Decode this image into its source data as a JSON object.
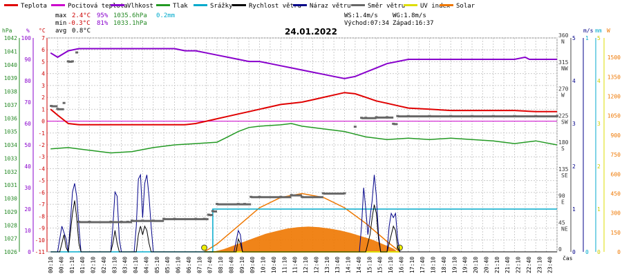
{
  "chart_data": {
    "type": "line",
    "title": "24.01.2022",
    "legend": [
      {
        "label": "Teplota",
        "color": "#e00000"
      },
      {
        "label": "Pocitová teplota",
        "color": "#cc00cc"
      },
      {
        "label": "Vlhkost",
        "color": "#8800cc"
      },
      {
        "label": "Tlak",
        "color": "#229922"
      },
      {
        "label": "Srážky",
        "color": "#00aacc"
      },
      {
        "label": "Rychlost větru",
        "color": "#000000"
      },
      {
        "label": "Náraz větru",
        "color": "#000088"
      },
      {
        "label": "Směr větru",
        "color": "#666666"
      },
      {
        "label": "UV index",
        "color": "#dddd00"
      },
      {
        "label": "Solar",
        "color": "#ee7700"
      }
    ],
    "stats": {
      "max_label": "max",
      "min_label": "min",
      "avg_label": "avg",
      "max_temp": "2.4°C",
      "max_hum": "95%",
      "max_press": "1035.6hPa",
      "rain": "0.2mm",
      "min_temp": "-0.3°C",
      "min_hum": "81%",
      "min_press": "1033.1hPa",
      "avg_temp": "0.8°C"
    },
    "wind_info": {
      "ws": "WS:1.4m/s",
      "wg": "WG:1.8m/s",
      "sunrise": "Východ:07:34",
      "sunset": "Západ:16:37"
    },
    "axes": {
      "hpa": {
        "unit": "hPa",
        "ticks": [
          1026,
          1027,
          1028,
          1029,
          1030,
          1031,
          1032,
          1033,
          1034,
          1035,
          1036,
          1037,
          1038,
          1039,
          1040,
          1041,
          1042
        ],
        "range": [
          1026,
          1042
        ]
      },
      "percent": {
        "unit": "%",
        "ticks": [
          0,
          10,
          20,
          30,
          40,
          50,
          60,
          70,
          80,
          90,
          100
        ],
        "range": [
          0,
          100
        ]
      },
      "temp": {
        "unit": "°C",
        "ticks": [
          -11,
          -10,
          -9,
          -8,
          -7,
          -6,
          -5,
          -4,
          -3,
          -2,
          -1,
          0,
          1,
          2,
          3,
          4,
          5,
          6,
          7
        ],
        "range": [
          -11,
          7
        ]
      },
      "direction": {
        "ticks": [
          {
            "v": 360,
            "d": "N"
          },
          {
            "v": 315,
            "d": "NW"
          },
          {
            "v": 270,
            "d": "W"
          },
          {
            "v": 225,
            "d": "SW"
          },
          {
            "v": 180,
            "d": "S"
          },
          {
            "v": 135,
            "d": "SE"
          },
          {
            "v": 90,
            "d": "E"
          },
          {
            "v": 45,
            "d": "NE"
          },
          {
            "v": 0,
            "d": ""
          }
        ],
        "range": [
          0,
          360
        ]
      },
      "wind": {
        "unit": "m/s",
        "ticks": [
          0,
          1,
          2,
          3,
          4,
          5
        ],
        "range": [
          0,
          5
        ]
      },
      "rain": {
        "unit": "mm",
        "ticks": [
          0,
          1
        ],
        "range": [
          0,
          1
        ]
      },
      "uv": {
        "unit": "UV",
        "ticks": [
          0,
          1,
          2,
          3,
          4,
          5
        ],
        "range": [
          0,
          5
        ]
      },
      "solar": {
        "unit": "W",
        "ticks": [
          0,
          150,
          300,
          450,
          600,
          750,
          900,
          1050,
          1200,
          1350,
          1500
        ],
        "range": [
          0,
          1650
        ]
      },
      "time_label": "čas",
      "time_ticks": [
        "00:10",
        "00:40",
        "01:10",
        "01:40",
        "02:10",
        "02:40",
        "03:10",
        "03:40",
        "04:10",
        "04:40",
        "05:10",
        "05:40",
        "06:10",
        "06:40",
        "07:10",
        "07:40",
        "08:10",
        "08:40",
        "09:10",
        "09:40",
        "10:10",
        "10:40",
        "11:10",
        "11:40",
        "12:10",
        "12:40",
        "13:10",
        "13:40",
        "14:10",
        "14:40",
        "15:10",
        "15:40",
        "16:10",
        "16:40",
        "17:10",
        "17:40",
        "18:10",
        "18:40",
        "19:10",
        "19:40",
        "20:10",
        "20:40",
        "21:10",
        "21:40",
        "22:10",
        "22:40",
        "23:10",
        "23:40"
      ]
    },
    "series": {
      "temperature_c": [
        [
          0.17,
          1.0
        ],
        [
          0.5,
          0.5
        ],
        [
          1.0,
          -0.2
        ],
        [
          1.5,
          -0.3
        ],
        [
          2,
          -0.3
        ],
        [
          3,
          -0.3
        ],
        [
          4,
          -0.3
        ],
        [
          5,
          -0.3
        ],
        [
          6,
          -0.3
        ],
        [
          6.5,
          -0.3
        ],
        [
          7,
          -0.2
        ],
        [
          7.5,
          0.0
        ],
        [
          8,
          0.2
        ],
        [
          8.5,
          0.4
        ],
        [
          9,
          0.6
        ],
        [
          9.5,
          0.8
        ],
        [
          10,
          1.0
        ],
        [
          10.5,
          1.2
        ],
        [
          11,
          1.4
        ],
        [
          11.5,
          1.5
        ],
        [
          12,
          1.6
        ],
        [
          12.5,
          1.8
        ],
        [
          13,
          2.0
        ],
        [
          13.5,
          2.2
        ],
        [
          14,
          2.4
        ],
        [
          14.5,
          2.3
        ],
        [
          15,
          2.0
        ],
        [
          15.5,
          1.7
        ],
        [
          16,
          1.5
        ],
        [
          16.5,
          1.3
        ],
        [
          17,
          1.1
        ],
        [
          18,
          1.0
        ],
        [
          19,
          0.9
        ],
        [
          20,
          0.9
        ],
        [
          21,
          0.9
        ],
        [
          22,
          0.9
        ],
        [
          23,
          0.8
        ],
        [
          24,
          0.8
        ]
      ],
      "feels_like_c": [
        [
          0.0,
          0.0
        ],
        [
          24,
          0.0
        ]
      ],
      "humidity_pct": [
        [
          0.17,
          93
        ],
        [
          0.5,
          91
        ],
        [
          1.0,
          94
        ],
        [
          1.5,
          95
        ],
        [
          2,
          95
        ],
        [
          3,
          95
        ],
        [
          4,
          95
        ],
        [
          5,
          95
        ],
        [
          6,
          95
        ],
        [
          6.5,
          94
        ],
        [
          7,
          94
        ],
        [
          7.5,
          93
        ],
        [
          8,
          92
        ],
        [
          8.5,
          91
        ],
        [
          9,
          90
        ],
        [
          9.5,
          89
        ],
        [
          10,
          89
        ],
        [
          10.5,
          88
        ],
        [
          11,
          87
        ],
        [
          11.5,
          86
        ],
        [
          12,
          85
        ],
        [
          12.5,
          84
        ],
        [
          13,
          83
        ],
        [
          13.5,
          82
        ],
        [
          14,
          81
        ],
        [
          14.5,
          82
        ],
        [
          15,
          84
        ],
        [
          15.5,
          86
        ],
        [
          16,
          88
        ],
        [
          16.5,
          89
        ],
        [
          17,
          90
        ],
        [
          18,
          90
        ],
        [
          19,
          90
        ],
        [
          20,
          90
        ],
        [
          21,
          90
        ],
        [
          22,
          90
        ],
        [
          22.5,
          91
        ],
        [
          22.7,
          90
        ],
        [
          24,
          90
        ]
      ],
      "pressure_hpa": [
        [
          0.17,
          1033.7
        ],
        [
          1,
          1033.8
        ],
        [
          2,
          1033.6
        ],
        [
          3,
          1033.4
        ],
        [
          4,
          1033.5
        ],
        [
          5,
          1033.8
        ],
        [
          6,
          1034.0
        ],
        [
          7,
          1034.1
        ],
        [
          8,
          1034.2
        ],
        [
          8.5,
          1034.6
        ],
        [
          9,
          1035.0
        ],
        [
          9.5,
          1035.3
        ],
        [
          10,
          1035.4
        ],
        [
          11,
          1035.5
        ],
        [
          11.5,
          1035.6
        ],
        [
          12,
          1035.4
        ],
        [
          13,
          1035.2
        ],
        [
          14,
          1035.0
        ],
        [
          15,
          1034.6
        ],
        [
          16,
          1034.4
        ],
        [
          17,
          1034.5
        ],
        [
          18,
          1034.4
        ],
        [
          19,
          1034.5
        ],
        [
          20,
          1034.4
        ],
        [
          21,
          1034.3
        ],
        [
          22,
          1034.1
        ],
        [
          23,
          1034.3
        ],
        [
          24,
          1034.0
        ]
      ],
      "rain_mm": [
        [
          0.17,
          0
        ],
        [
          7.8,
          0
        ],
        [
          7.8,
          0.2
        ],
        [
          24,
          0.2
        ]
      ],
      "wind_speed_ms": [
        [
          0.17,
          0
        ],
        [
          0.6,
          0
        ],
        [
          0.8,
          0.4
        ],
        [
          0.9,
          0.1
        ],
        [
          1.0,
          0
        ],
        [
          1.2,
          0.9
        ],
        [
          1.3,
          1.2
        ],
        [
          1.4,
          0.8
        ],
        [
          1.5,
          0.2
        ],
        [
          1.6,
          0
        ],
        [
          3.0,
          0
        ],
        [
          3.1,
          0.2
        ],
        [
          3.2,
          0.5
        ],
        [
          3.3,
          0.2
        ],
        [
          3.4,
          0
        ],
        [
          4.2,
          0
        ],
        [
          4.3,
          0.4
        ],
        [
          4.4,
          0.6
        ],
        [
          4.5,
          0.4
        ],
        [
          4.6,
          0.6
        ],
        [
          4.7,
          0.5
        ],
        [
          4.8,
          0.2
        ],
        [
          4.9,
          0
        ],
        [
          6.0,
          0
        ],
        [
          8.9,
          0
        ],
        [
          9.0,
          0.3
        ],
        [
          9.1,
          0.2
        ],
        [
          9.2,
          0
        ],
        [
          15.0,
          0
        ],
        [
          15.2,
          0.4
        ],
        [
          15.3,
          0.8
        ],
        [
          15.4,
          1.1
        ],
        [
          15.5,
          0.9
        ],
        [
          15.6,
          0.3
        ],
        [
          15.7,
          0
        ],
        [
          16.0,
          0
        ],
        [
          16.1,
          0.2
        ],
        [
          16.3,
          0.6
        ],
        [
          16.4,
          0.5
        ],
        [
          16.5,
          0.1
        ],
        [
          16.6,
          0
        ],
        [
          24,
          0
        ]
      ],
      "wind_gust_ms": [
        [
          0.17,
          0
        ],
        [
          0.5,
          0
        ],
        [
          0.7,
          0.6
        ],
        [
          0.9,
          0.3
        ],
        [
          1.0,
          0
        ],
        [
          1.2,
          1.4
        ],
        [
          1.3,
          1.6
        ],
        [
          1.4,
          1.3
        ],
        [
          1.5,
          0.6
        ],
        [
          1.6,
          0
        ],
        [
          3.0,
          0
        ],
        [
          3.1,
          0.6
        ],
        [
          3.2,
          1.4
        ],
        [
          3.3,
          1.3
        ],
        [
          3.4,
          0.3
        ],
        [
          3.5,
          0
        ],
        [
          4.1,
          0
        ],
        [
          4.2,
          0.6
        ],
        [
          4.3,
          1.7
        ],
        [
          4.4,
          1.8
        ],
        [
          4.5,
          0.8
        ],
        [
          4.6,
          1.6
        ],
        [
          4.7,
          1.8
        ],
        [
          4.8,
          1.3
        ],
        [
          4.9,
          0.6
        ],
        [
          5.0,
          0
        ],
        [
          6.0,
          0
        ],
        [
          8.8,
          0
        ],
        [
          9.0,
          0.5
        ],
        [
          9.1,
          0.4
        ],
        [
          9.2,
          0
        ],
        [
          14.7,
          0
        ],
        [
          14.8,
          0.6
        ],
        [
          14.9,
          1.5
        ],
        [
          15.0,
          1.0
        ],
        [
          15.1,
          0.4
        ],
        [
          15.3,
          1.2
        ],
        [
          15.4,
          1.8
        ],
        [
          15.5,
          1.3
        ],
        [
          15.6,
          0.4
        ],
        [
          15.7,
          0
        ],
        [
          16.0,
          0
        ],
        [
          16.1,
          0.6
        ],
        [
          16.2,
          0.9
        ],
        [
          16.3,
          0.8
        ],
        [
          16.4,
          0.9
        ],
        [
          16.5,
          0.3
        ],
        [
          16.6,
          0
        ],
        [
          24,
          0
        ]
      ],
      "wind_dir_deg": [
        [
          0.2,
          245
        ],
        [
          0.5,
          240
        ],
        [
          0.8,
          250
        ],
        [
          1.0,
          320
        ],
        [
          1.2,
          320
        ],
        [
          1.4,
          335
        ],
        [
          1.5,
          50
        ],
        [
          2,
          50
        ],
        [
          3,
          50
        ],
        [
          3.5,
          50
        ],
        [
          3.8,
          50
        ],
        [
          4.0,
          52
        ],
        [
          4.5,
          52
        ],
        [
          5,
          52
        ],
        [
          5.5,
          55
        ],
        [
          6,
          55
        ],
        [
          7,
          55
        ],
        [
          7.4,
          55
        ],
        [
          7.6,
          62
        ],
        [
          7.8,
          68
        ],
        [
          8,
          80
        ],
        [
          9,
          80
        ],
        [
          9.3,
          80
        ],
        [
          9.6,
          92
        ],
        [
          10,
          92
        ],
        [
          11,
          92
        ],
        [
          11.5,
          95
        ],
        [
          12,
          92
        ],
        [
          13,
          98
        ],
        [
          14,
          98
        ],
        [
          14.5,
          210
        ],
        [
          14.8,
          225
        ],
        [
          15,
          225
        ],
        [
          15.5,
          226
        ],
        [
          16,
          226
        ],
        [
          16.3,
          215
        ],
        [
          16.5,
          228
        ],
        [
          17,
          228
        ],
        [
          18,
          228
        ],
        [
          19,
          228
        ],
        [
          20,
          228
        ],
        [
          21,
          228
        ],
        [
          22,
          228
        ],
        [
          23,
          228
        ],
        [
          24,
          228
        ]
      ],
      "solar_wm2": [
        [
          7.8,
          0
        ],
        [
          8.3,
          20
        ],
        [
          8.8,
          50
        ],
        [
          9.3,
          80
        ],
        [
          9.8,
          110
        ],
        [
          10.3,
          140
        ],
        [
          10.8,
          160
        ],
        [
          11.3,
          180
        ],
        [
          11.8,
          190
        ],
        [
          12.3,
          195
        ],
        [
          12.8,
          190
        ],
        [
          13.3,
          180
        ],
        [
          13.8,
          165
        ],
        [
          14.3,
          145
        ],
        [
          14.8,
          120
        ],
        [
          15.3,
          95
        ],
        [
          15.8,
          60
        ],
        [
          16.3,
          25
        ],
        [
          16.5,
          0
        ]
      ],
      "solar_theoretical_wm2": [
        [
          7.4,
          0
        ],
        [
          8,
          60
        ],
        [
          9,
          200
        ],
        [
          10,
          340
        ],
        [
          11,
          420
        ],
        [
          12,
          450
        ],
        [
          13,
          420
        ],
        [
          14,
          340
        ],
        [
          15,
          220
        ],
        [
          16,
          80
        ],
        [
          16.6,
          0
        ]
      ],
      "uv_index": [
        [
          7.4,
          0
        ],
        [
          16.6,
          0
        ]
      ]
    }
  }
}
